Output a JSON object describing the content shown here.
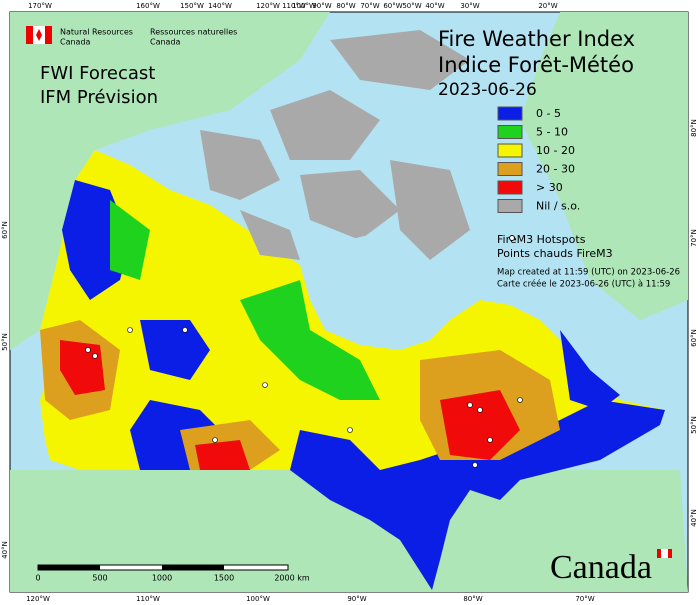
{
  "header": {
    "agency_en": "Natural Resources",
    "agency_en_2": "Canada",
    "agency_fr": "Ressources naturelles",
    "agency_fr_2": "Canada"
  },
  "product": {
    "line1": "FWI Forecast",
    "line2": "IFM Prévision"
  },
  "title": {
    "en": "Fire Weather Index",
    "fr": "Indice Forêt-Météo",
    "date": "2023-06-26"
  },
  "legend": {
    "classes": [
      {
        "label": "0 - 5",
        "color": "#0a1ee6"
      },
      {
        "label": "5 - 10",
        "color": "#1ed21e"
      },
      {
        "label": "10 - 20",
        "color": "#f5f500"
      },
      {
        "label": "20 - 30",
        "color": "#dca01e"
      },
      {
        "label": "> 30",
        "color": "#f00a0a"
      },
      {
        "label": "Nil / s.o.",
        "color": "#a9a9a9"
      }
    ],
    "hotspots_en": "FireM3 Hotspots",
    "hotspots_fr": "Points chauds FireM3"
  },
  "credits": {
    "created_en": "Map created at 11:59 (UTC) on 2023-06-26",
    "created_fr": "Carte créée le 2023-06-26 (UTC) à 11:59"
  },
  "scale": {
    "labels": [
      "0",
      "500",
      "1000",
      "1500",
      "2000 km"
    ]
  },
  "graticule": {
    "top": [
      "170°W",
      "160°W",
      "150°W",
      "140°W",
      "120°W",
      "110°W",
      "100°W",
      "90°W",
      "80°W",
      "70°W",
      "60°W",
      "50°W",
      "40°W",
      "30°W",
      "20°W"
    ],
    "bottom": [
      "120°W",
      "110°W",
      "100°W",
      "90°W",
      "80°W",
      "70°W"
    ],
    "left": [
      "60°N",
      "50°N",
      "40°N"
    ],
    "right": [
      "80°N",
      "70°N",
      "60°N",
      "50°N",
      "40°N"
    ]
  },
  "wordmark": "Canada"
}
